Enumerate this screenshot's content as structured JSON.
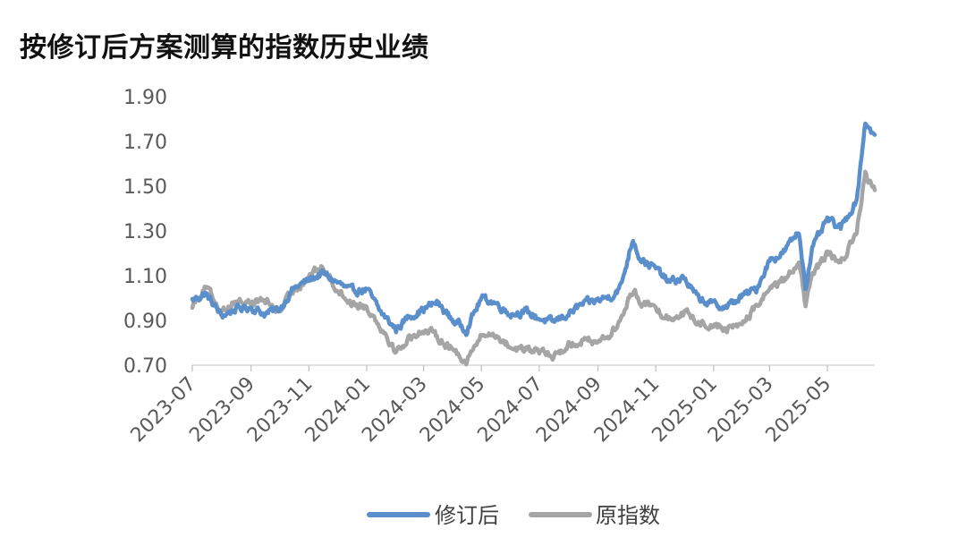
{
  "chart_data": {
    "type": "line",
    "title": "按修订后方案测算的指数历史业绩",
    "xlabel": "",
    "ylabel": "",
    "ylim": [
      0.7,
      1.9
    ],
    "yticks": [
      "0.70",
      "0.90",
      "1.10",
      "1.30",
      "1.50",
      "1.70",
      "1.90"
    ],
    "xticks": [
      "2023-07",
      "2023-09",
      "2023-11",
      "2024-01",
      "2024-03",
      "2024-05",
      "2024-07",
      "2024-09",
      "2024-11",
      "2025-01",
      "2025-03",
      "2025-05"
    ],
    "xrange": [
      "2023-07-01",
      "2025-06-20"
    ],
    "grid": false,
    "legend": "bottom",
    "x": [
      "2023-07-01",
      "2023-07-15",
      "2023-08-01",
      "2023-08-15",
      "2023-09-01",
      "2023-09-15",
      "2023-10-01",
      "2023-10-15",
      "2023-11-01",
      "2023-11-15",
      "2023-12-01",
      "2023-12-15",
      "2024-01-01",
      "2024-01-15",
      "2024-02-01",
      "2024-02-15",
      "2024-03-01",
      "2024-03-15",
      "2024-04-01",
      "2024-04-15",
      "2024-05-01",
      "2024-05-15",
      "2024-06-01",
      "2024-06-15",
      "2024-07-01",
      "2024-07-15",
      "2024-08-01",
      "2024-08-15",
      "2024-09-01",
      "2024-09-15",
      "2024-09-25",
      "2024-10-08",
      "2024-10-15",
      "2024-11-01",
      "2024-11-15",
      "2024-12-01",
      "2024-12-15",
      "2025-01-01",
      "2025-01-15",
      "2025-02-01",
      "2025-02-15",
      "2025-03-01",
      "2025-03-15",
      "2025-04-01",
      "2025-04-08",
      "2025-04-15",
      "2025-05-01",
      "2025-05-15",
      "2025-06-01",
      "2025-06-10",
      "2025-06-20"
    ],
    "series": [
      {
        "name": "修订后",
        "color": "#5B8FCC",
        "values": [
          0.99,
          1.02,
          0.92,
          0.95,
          0.96,
          0.93,
          0.95,
          1.04,
          1.08,
          1.11,
          1.07,
          1.03,
          1.04,
          0.94,
          0.86,
          0.92,
          0.95,
          0.98,
          0.9,
          0.86,
          1.0,
          0.98,
          0.93,
          0.94,
          0.91,
          0.89,
          0.93,
          0.97,
          0.99,
          1.01,
          1.05,
          1.27,
          1.18,
          1.13,
          1.07,
          1.09,
          1.0,
          0.97,
          0.96,
          1.01,
          1.04,
          1.17,
          1.2,
          1.3,
          1.05,
          1.22,
          1.35,
          1.31,
          1.44,
          1.79,
          1.72
        ]
      },
      {
        "name": "原指数",
        "color": "#A5A5A5",
        "values": [
          0.97,
          1.05,
          0.94,
          0.99,
          0.98,
          0.99,
          0.94,
          1.03,
          1.1,
          1.14,
          1.04,
          0.98,
          0.96,
          0.88,
          0.76,
          0.82,
          0.86,
          0.83,
          0.77,
          0.72,
          0.83,
          0.84,
          0.78,
          0.77,
          0.76,
          0.74,
          0.79,
          0.81,
          0.81,
          0.84,
          0.9,
          1.04,
          0.99,
          0.95,
          0.91,
          0.94,
          0.89,
          0.88,
          0.86,
          0.89,
          0.96,
          1.05,
          1.07,
          1.17,
          0.96,
          1.1,
          1.2,
          1.15,
          1.3,
          1.55,
          1.48
        ]
      }
    ]
  }
}
